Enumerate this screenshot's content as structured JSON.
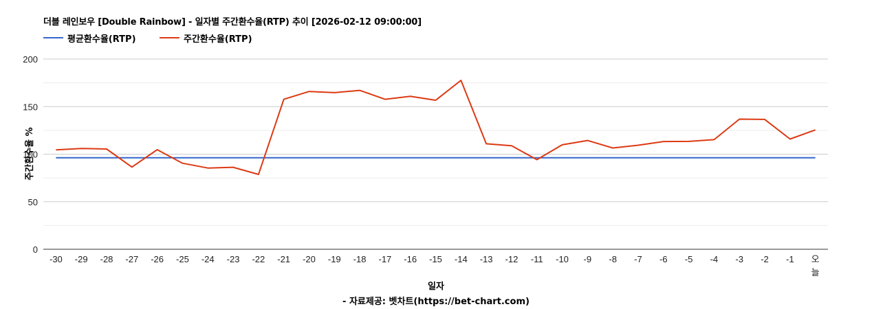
{
  "chart_data": {
    "type": "line",
    "title": "더블 레인보우 [Double Rainbow] - 일자별 주간환수율(RTP) 추이 [2026-02-12 09:00:00]",
    "xlabel": "일자",
    "ylabel": "주간환수율 %",
    "source": "- 자료제공: 벳차트(https://bet-chart.com)",
    "ylim": [
      0,
      200
    ],
    "yticks": [
      0,
      50,
      100,
      150,
      200
    ],
    "grid": true,
    "legend_position": "top",
    "categories": [
      "-30",
      "-29",
      "-28",
      "-27",
      "-26",
      "-25",
      "-24",
      "-23",
      "-22",
      "-21",
      "-20",
      "-19",
      "-18",
      "-17",
      "-16",
      "-15",
      "-14",
      "-13",
      "-12",
      "-11",
      "-10",
      "-9",
      "-8",
      "-7",
      "-6",
      "-5",
      "-4",
      "-3",
      "-2",
      "-1",
      "오늘"
    ],
    "series": [
      {
        "name": "평균환수율(RTP)",
        "color": "#3366cc",
        "values": [
          96.2,
          96.2,
          96.2,
          96.2,
          96.2,
          96.2,
          96.2,
          96.2,
          96.2,
          96.2,
          96.2,
          96.2,
          96.2,
          96.2,
          96.2,
          96.2,
          96.2,
          96.2,
          96.2,
          96.2,
          96.2,
          96.2,
          96.2,
          96.2,
          96.2,
          96.2,
          96.2,
          96.2,
          96.2,
          96.2,
          96.2
        ]
      },
      {
        "name": "주간환수율(RTP)",
        "color": "#dc3912",
        "values": [
          104.5,
          106.0,
          105.4,
          86.4,
          104.7,
          90.5,
          85.4,
          86.2,
          78.7,
          157.7,
          165.9,
          164.7,
          167.1,
          157.7,
          160.8,
          156.7,
          177.6,
          110.9,
          108.9,
          94.2,
          109.8,
          114.4,
          106.5,
          109.4,
          113.3,
          113.4,
          115.2,
          136.8,
          136.5,
          115.9,
          125.5
        ]
      }
    ]
  }
}
